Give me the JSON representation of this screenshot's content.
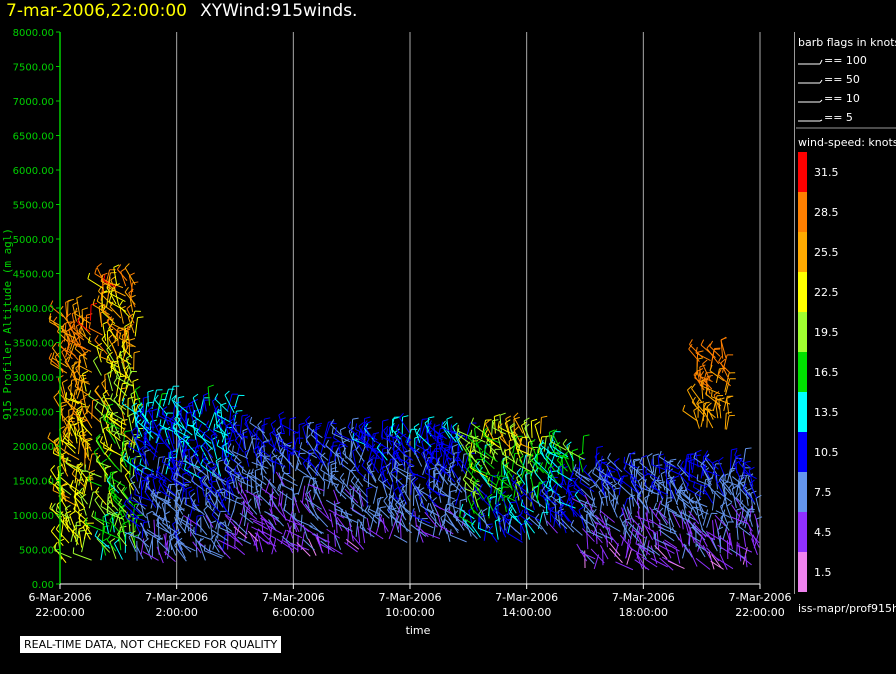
{
  "title": {
    "date": "7-mar-2006,22:00:00",
    "main": "XYWind:915winds."
  },
  "footer_note": "REAL-TIME DATA, NOT CHECKED FOR QUALITY",
  "source": "iss-mapr/prof915h",
  "legend": {
    "barb_title": "barb flags in knots",
    "barbs": [
      "== 100",
      "== 50",
      "== 10",
      "== 5"
    ],
    "speed_title": "wind-speed: knots",
    "scale": [
      {
        "label": "31.5",
        "color": "#ff0000"
      },
      {
        "label": "28.5",
        "color": "#ff7f00"
      },
      {
        "label": "25.5",
        "color": "#ffaa00"
      },
      {
        "label": "22.5",
        "color": "#ffff00"
      },
      {
        "label": "19.5",
        "color": "#a0ff30"
      },
      {
        "label": "16.5",
        "color": "#00e000"
      },
      {
        "label": "13.5",
        "color": "#00ffff"
      },
      {
        "label": "10.5",
        "color": "#0000ff"
      },
      {
        "label": "7.5",
        "color": "#6495ed"
      },
      {
        "label": "4.5",
        "color": "#9030ff"
      },
      {
        "label": "1.5",
        "color": "#ee82ee"
      }
    ]
  },
  "chart_data": {
    "type": "scatter",
    "ylabel": "915 Profiler Altitude (m agl)",
    "xlabel": "time",
    "ylim": [
      0,
      8000
    ],
    "xlim_hours": [
      0,
      24
    ],
    "y_ticks": [
      "0.00",
      "500.00",
      "1000.00",
      "1500.00",
      "2000.00",
      "2500.00",
      "3000.00",
      "3500.00",
      "4000.00",
      "4500.00",
      "5000.00",
      "5500.00",
      "6000.00",
      "6500.00",
      "7000.00",
      "7500.00",
      "8000.00"
    ],
    "x_ticks": [
      {
        "date": "6-Mar-2006",
        "time": "22:00:00"
      },
      {
        "date": "7-Mar-2006",
        "time": "2:00:00"
      },
      {
        "date": "7-Mar-2006",
        "time": "6:00:00"
      },
      {
        "date": "7-Mar-2006",
        "time": "10:00:00"
      },
      {
        "date": "7-Mar-2006",
        "time": "14:00:00"
      },
      {
        "date": "7-Mar-2006",
        "time": "18:00:00"
      },
      {
        "date": "7-Mar-2006",
        "time": "22:00:00"
      }
    ],
    "grid_x": true,
    "clusters": [
      {
        "t0": 0.0,
        "t1": 1.1,
        "a0": 300,
        "a1": 3900,
        "speed_low": 18,
        "speed_high": 31
      },
      {
        "t0": 1.4,
        "t1": 2.6,
        "a0": 300,
        "a1": 4400,
        "speed_low": 12,
        "speed_high": 31
      },
      {
        "t0": 2.6,
        "t1": 6.0,
        "a0": 300,
        "a1": 2600,
        "speed_low": 4,
        "speed_high": 16
      },
      {
        "t0": 6.0,
        "t1": 10.5,
        "a0": 400,
        "a1": 2200,
        "speed_low": 2,
        "speed_high": 12
      },
      {
        "t0": 10.5,
        "t1": 14.0,
        "a0": 600,
        "a1": 2200,
        "speed_low": 4,
        "speed_high": 14
      },
      {
        "t0": 14.0,
        "t1": 16.5,
        "a0": 600,
        "a1": 2200,
        "speed_low": 5,
        "speed_high": 28
      },
      {
        "t0": 16.5,
        "t1": 18.0,
        "a0": 700,
        "a1": 2000,
        "speed_low": 5,
        "speed_high": 20
      },
      {
        "t0": 18.0,
        "t1": 24.0,
        "a0": 200,
        "a1": 1700,
        "speed_low": 2,
        "speed_high": 12
      },
      {
        "t0": 21.8,
        "t1": 23.0,
        "a0": 2200,
        "a1": 3300,
        "speed_low": 24,
        "speed_high": 30
      }
    ]
  }
}
